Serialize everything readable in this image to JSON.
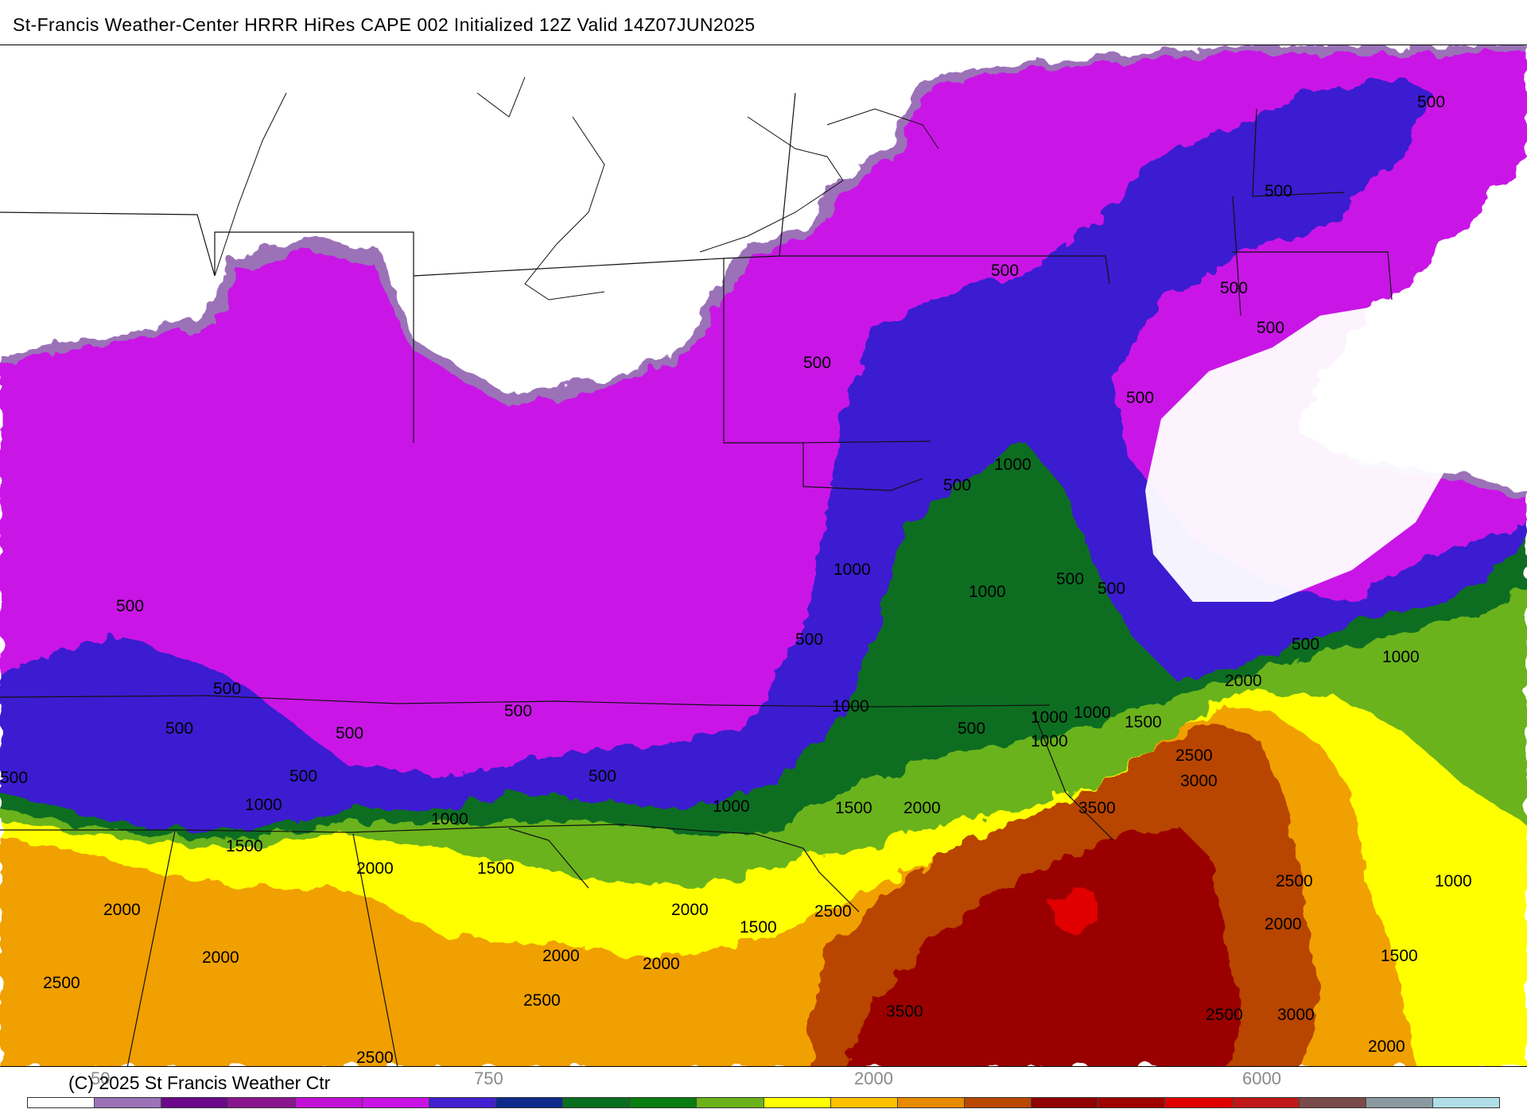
{
  "header": {
    "title": "St-Francis Weather-Center HRRR HiRes CAPE  002 Initialized  12Z Valid 14Z07JUN2025"
  },
  "footer": {
    "copyright": "(C) 2025 St Francis Weather Ctr"
  },
  "legend": {
    "colors": [
      "#ffffff",
      "#9b72b8",
      "#6a0a8a",
      "#8a168e",
      "#c211d6",
      "#c912e6",
      "#4020d0",
      "#0d2a8c",
      "#0a6e20",
      "#0a7d10",
      "#6bb31a",
      "#ffff00",
      "#ffc000",
      "#e88a00",
      "#b84800",
      "#900000",
      "#a00000",
      "#e00000",
      "#c01818",
      "#7a4a4a",
      "#8a9aa0",
      "#b0dde8"
    ],
    "tick_labels": [
      "50",
      "750",
      "2000",
      "6000"
    ]
  },
  "map": {
    "contour_labels": [
      "500",
      "500",
      "500",
      "500",
      "500",
      "500",
      "500",
      "500",
      "500",
      "500",
      "500",
      "500",
      "500",
      "500",
      "500",
      "500",
      "500",
      "500",
      "500",
      "500",
      "500",
      "1000",
      "1000",
      "1000",
      "1000",
      "1000",
      "1000",
      "1000",
      "1000",
      "1000",
      "1000",
      "1000",
      "1000",
      "1500",
      "1500",
      "1500",
      "1500",
      "1500",
      "1500",
      "2000",
      "2000",
      "2000",
      "2000",
      "2000",
      "2000",
      "2000",
      "2000",
      "2000",
      "2000",
      "2500",
      "2500",
      "2500",
      "2500",
      "2500",
      "2500",
      "2500",
      "3000",
      "3000",
      "3500",
      "3500"
    ]
  }
}
